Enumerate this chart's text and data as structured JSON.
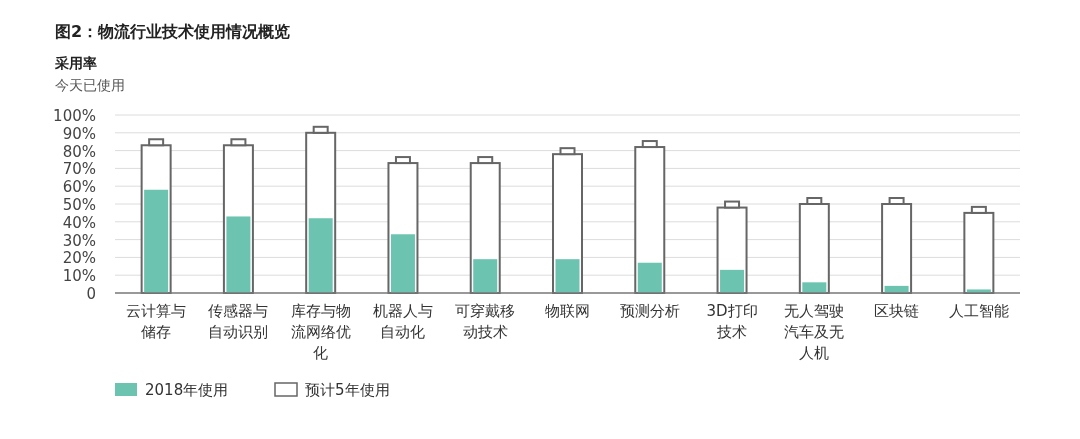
{
  "chart_data": {
    "type": "bar",
    "title": "图2：物流行业技术使用情况概览",
    "subtitle": "采用率",
    "ylabel": "今天已使用",
    "categories": [
      "云计算与储存",
      "传感器与自动识别",
      "库存与物流网络优化",
      "机器人与自动化",
      "可穿戴移动技术",
      "物联网",
      "预测分析",
      "3D打印技术",
      "无人驾驶汽车及无人机",
      "区块链",
      "人工智能"
    ],
    "series": [
      {
        "name": "预计5年使用",
        "color": "#ffffff",
        "values": [
          83,
          83,
          90,
          73,
          73,
          78,
          82,
          48,
          50,
          50,
          45
        ]
      },
      {
        "name": "2018年使用",
        "color": "#6cc4b0",
        "values": [
          58,
          43,
          42,
          33,
          19,
          19,
          17,
          13,
          6,
          4,
          2
        ]
      }
    ],
    "ylim": [
      0,
      100
    ],
    "yticks": [
      0,
      {
        "value": 10,
        "label": "10%"
      },
      {
        "value": 20,
        "label": "20%"
      },
      {
        "value": 30,
        "label": "30%"
      },
      {
        "value": 40,
        "label": "40%"
      },
      {
        "value": 50,
        "label": "50%"
      },
      {
        "value": 60,
        "label": "60%"
      },
      {
        "value": 70,
        "label": "70%"
      },
      {
        "value": 80,
        "label": "80%"
      },
      {
        "value": 90,
        "label": "90%"
      },
      {
        "value": 100,
        "label": "100%"
      }
    ],
    "grid": "y",
    "legend": "bottom left"
  }
}
